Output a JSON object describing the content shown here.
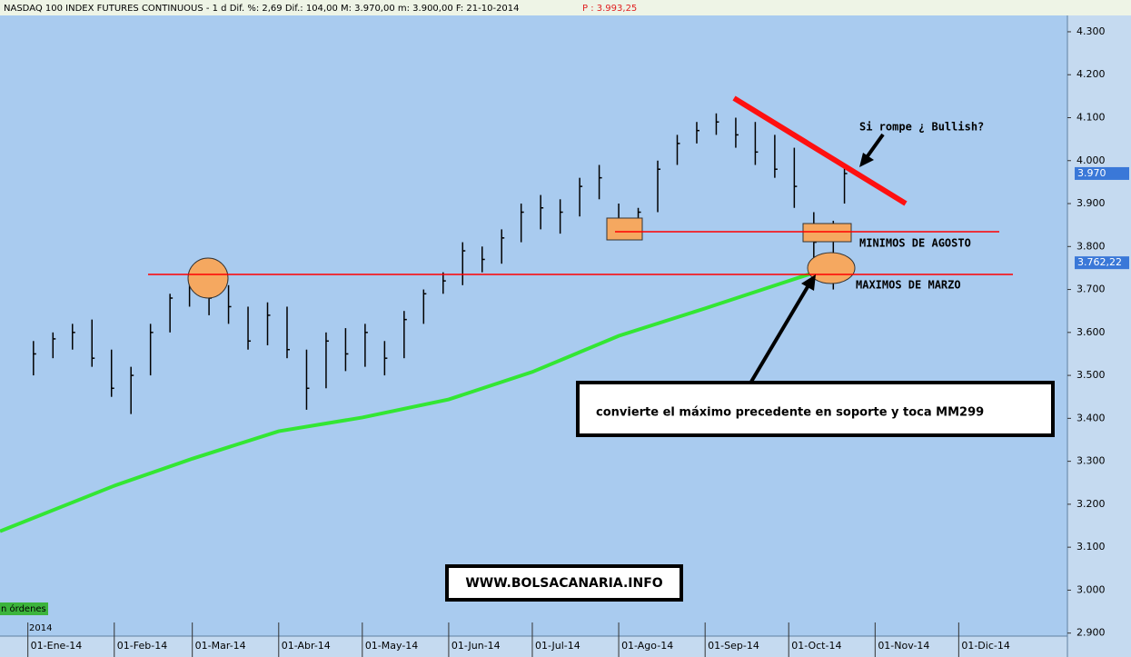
{
  "chart_data": {
    "type": "ohlc",
    "header": "NASDAQ 100 INDEX FUTURES CONTINUOUS -  1 d Dif. %: 2,69 Dif.: 104,00 M: 3.970,00 m: 3.900,00 F: 21-10-2014",
    "header_price": "P : 3.993,25",
    "year_label": "2014",
    "orders_label": "n órdenes",
    "annotations": {
      "bullish": "Si rompe ¿ Bullish?",
      "minimos": "MINIMOS DE AGOSTO",
      "maximos": "MAXIMOS DE MARZO",
      "support": "convierte el máximo precedente en soporte y toca MM299",
      "site": "WWW.BOLSACANARIA.INFO"
    },
    "color": "#000000",
    "x": [
      2,
      9,
      16,
      23,
      30,
      37,
      44,
      51,
      58,
      65,
      72,
      79,
      86,
      93,
      100,
      107,
      114,
      121,
      128,
      135,
      142,
      149,
      156,
      163,
      170,
      177,
      184,
      191,
      198,
      205,
      212,
      219,
      226,
      233,
      240,
      247,
      254,
      261,
      268,
      275,
      282,
      289,
      293
    ],
    "high": [
      3580,
      3600,
      3620,
      3630,
      3560,
      3520,
      3620,
      3690,
      3740,
      3730,
      3710,
      3660,
      3670,
      3660,
      3560,
      3600,
      3610,
      3620,
      3580,
      3650,
      3700,
      3740,
      3810,
      3800,
      3840,
      3900,
      3920,
      3910,
      3960,
      3990,
      3900,
      3890,
      4000,
      4060,
      4090,
      4110,
      4100,
      4090,
      4060,
      4030,
      3880,
      3860,
      3993
    ],
    "low": [
      3500,
      3540,
      3560,
      3520,
      3450,
      3410,
      3500,
      3600,
      3660,
      3640,
      3620,
      3560,
      3570,
      3540,
      3420,
      3470,
      3510,
      3520,
      3500,
      3540,
      3620,
      3690,
      3710,
      3740,
      3760,
      3810,
      3840,
      3830,
      3870,
      3910,
      3840,
      3840,
      3880,
      3990,
      4040,
      4060,
      4030,
      3990,
      3960,
      3890,
      3760,
      3700,
      3900
    ],
    "close": [
      3550,
      3585,
      3600,
      3540,
      3470,
      3500,
      3600,
      3680,
      3710,
      3680,
      3660,
      3580,
      3640,
      3560,
      3470,
      3580,
      3550,
      3600,
      3540,
      3630,
      3690,
      3720,
      3790,
      3770,
      3820,
      3880,
      3890,
      3880,
      3940,
      3960,
      3860,
      3880,
      3980,
      4040,
      4070,
      4090,
      4060,
      4020,
      3980,
      3940,
      3810,
      3780,
      3970
    ],
    "average": {
      "color": "#33e633",
      "x": [
        -10,
        31,
        59,
        90,
        120,
        151,
        181,
        212,
        243,
        273,
        293
      ],
      "values": [
        3137,
        3243,
        3306,
        3370,
        3402,
        3444,
        3508,
        3592,
        3656,
        3720,
        3762.22
      ]
    },
    "last_price": {
      "value": 3970,
      "label": "3.970"
    },
    "last_average": {
      "value": 3762.22,
      "label": "3.762,22"
    },
    "xlim": [
      -10,
      373
    ],
    "xticks": [
      {
        "value": 0,
        "label": "01-Ene-14"
      },
      {
        "value": 31,
        "label": "01-Feb-14"
      },
      {
        "value": 59,
        "label": "01-Mar-14"
      },
      {
        "value": 90,
        "label": "01-Abr-14"
      },
      {
        "value": 120,
        "label": "01-May-14"
      },
      {
        "value": 151,
        "label": "01-Jun-14"
      },
      {
        "value": 181,
        "label": "01-Jul-14"
      },
      {
        "value": 212,
        "label": "01-Ago-14"
      },
      {
        "value": 243,
        "label": "01-Sep-14"
      },
      {
        "value": 273,
        "label": "01-Oct-14"
      },
      {
        "value": 304,
        "label": "01-Nov-14"
      },
      {
        "value": 334,
        "label": "01-Dic-14"
      }
    ],
    "ylim": [
      2893,
      4338
    ],
    "yticks": [
      {
        "value": 4300,
        "label": "4.300"
      },
      {
        "value": 4200,
        "label": "4.200"
      },
      {
        "value": 4100,
        "label": "4.100"
      },
      {
        "value": 4000,
        "label": "4.000"
      },
      {
        "value": 3900,
        "label": "3.900"
      },
      {
        "value": 3800,
        "label": "3.800"
      },
      {
        "value": 3700,
        "label": "3.700"
      },
      {
        "value": 3600,
        "label": "3.600"
      },
      {
        "value": 3500,
        "label": "3.500"
      },
      {
        "value": 3400,
        "label": "3.400"
      },
      {
        "value": 3300,
        "label": "3.300"
      },
      {
        "value": 3200,
        "label": "3.200"
      },
      {
        "value": 3100,
        "label": "3.100"
      },
      {
        "value": 3000,
        "label": "3.000"
      },
      {
        "value": 2900,
        "label": "2.900"
      }
    ]
  }
}
